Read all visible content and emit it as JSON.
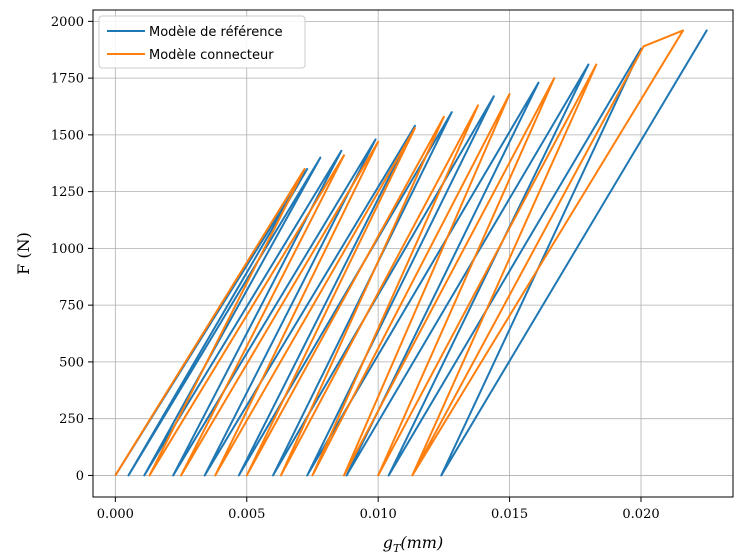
{
  "chart_data": {
    "type": "line",
    "title": "",
    "xlabel": "g_T(mm)",
    "xlabel_main": "g",
    "xlabel_sub": "T",
    "xlabel_rest": "(mm)",
    "ylabel": "F (N)",
    "xlim": [
      -0.00085,
      0.0235
    ],
    "ylim": [
      -95,
      2050
    ],
    "xticks": [
      0.0,
      0.005,
      0.01,
      0.015,
      0.02
    ],
    "xtick_labels": [
      "0.000",
      "0.005",
      "0.010",
      "0.015",
      "0.020"
    ],
    "yticks": [
      0,
      250,
      500,
      750,
      1000,
      1250,
      1500,
      1750,
      2000
    ],
    "ytick_labels": [
      "0",
      "250",
      "500",
      "750",
      "1000",
      "1250",
      "1500",
      "1750",
      "2000"
    ],
    "grid": true,
    "legend_position": "top-left",
    "series": [
      {
        "name": "Modèle de référence",
        "color": "#1f77b4",
        "points": [
          [
            0.0,
            0
          ],
          [
            0.0073,
            1350
          ],
          [
            0.0005,
            0
          ],
          [
            0.0005,
            0
          ],
          [
            0.0078,
            1400
          ],
          [
            0.0011,
            0
          ],
          [
            0.0011,
            0
          ],
          [
            0.0086,
            1430
          ],
          [
            0.0022,
            0
          ],
          [
            0.0022,
            0
          ],
          [
            0.0099,
            1480
          ],
          [
            0.0034,
            0
          ],
          [
            0.0034,
            0
          ],
          [
            0.0114,
            1540
          ],
          [
            0.0047,
            0
          ],
          [
            0.0047,
            0
          ],
          [
            0.0128,
            1600
          ],
          [
            0.006,
            0
          ],
          [
            0.006,
            0
          ],
          [
            0.0144,
            1670
          ],
          [
            0.0073,
            0
          ],
          [
            0.0073,
            0
          ],
          [
            0.0161,
            1730
          ],
          [
            0.0088,
            0
          ],
          [
            0.0088,
            0
          ],
          [
            0.018,
            1810
          ],
          [
            0.0104,
            0
          ],
          [
            0.0104,
            0
          ],
          [
            0.02,
            1880
          ],
          [
            0.0124,
            0
          ],
          [
            0.0124,
            0
          ],
          [
            0.0225,
            1960
          ],
          [
            0.0124,
            0
          ]
        ]
      },
      {
        "name": "Modèle connecteur",
        "color": "#ff7f0e",
        "points": [
          [
            0.0,
            0
          ],
          [
            0.0072,
            1350
          ],
          [
            0.0013,
            0
          ],
          [
            0.0013,
            0
          ],
          [
            0.0087,
            1410
          ],
          [
            0.0025,
            0
          ],
          [
            0.0025,
            0
          ],
          [
            0.01,
            1470
          ],
          [
            0.0038,
            0
          ],
          [
            0.0038,
            0
          ],
          [
            0.0114,
            1530
          ],
          [
            0.005,
            0
          ],
          [
            0.005,
            0
          ],
          [
            0.0125,
            1580
          ],
          [
            0.0063,
            0
          ],
          [
            0.0063,
            0
          ],
          [
            0.0138,
            1630
          ],
          [
            0.0075,
            0
          ],
          [
            0.0075,
            0
          ],
          [
            0.015,
            1680
          ],
          [
            0.0087,
            0
          ],
          [
            0.0087,
            0
          ],
          [
            0.0167,
            1750
          ],
          [
            0.01,
            0
          ],
          [
            0.01,
            0
          ],
          [
            0.0183,
            1810
          ],
          [
            0.0113,
            0
          ],
          [
            0.0113,
            0
          ],
          [
            0.0201,
            1890
          ],
          [
            0.0113,
            0
          ],
          [
            0.0201,
            1890
          ],
          [
            0.0216,
            1960
          ],
          [
            0.0113,
            0
          ]
        ]
      }
    ]
  }
}
